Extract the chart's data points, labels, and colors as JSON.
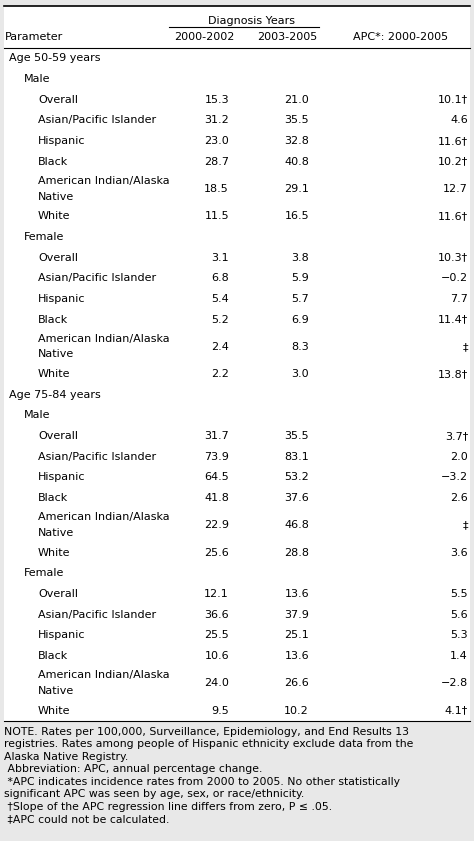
{
  "col_headers": [
    "Parameter",
    "2000-2002",
    "2003-2005",
    "APC*: 2000-2005"
  ],
  "diag_years_label": "Diagnosis Years",
  "rows": [
    {
      "label": "Age 50-59 years",
      "level": 0,
      "type": "section",
      "v1": "",
      "v2": "",
      "v3": "",
      "tall": false
    },
    {
      "label": "Male",
      "level": 1,
      "type": "subsection",
      "v1": "",
      "v2": "",
      "v3": "",
      "tall": false
    },
    {
      "label": "Overall",
      "level": 2,
      "type": "data",
      "v1": "15.3",
      "v2": "21.0",
      "v3": "10.1†",
      "tall": false
    },
    {
      "label": "Asian/Pacific Islander",
      "level": 2,
      "type": "data",
      "v1": "31.2",
      "v2": "35.5",
      "v3": "4.6",
      "tall": false
    },
    {
      "label": "Hispanic",
      "level": 2,
      "type": "data",
      "v1": "23.0",
      "v2": "32.8",
      "v3": "11.6†",
      "tall": false
    },
    {
      "label": "Black",
      "level": 2,
      "type": "data",
      "v1": "28.7",
      "v2": "40.8",
      "v3": "10.2†",
      "tall": false
    },
    {
      "label": "American Indian/Alaska\nNative",
      "level": 2,
      "type": "data",
      "v1": "18.5",
      "v2": "29.1",
      "v3": "12.7",
      "tall": true
    },
    {
      "label": "White",
      "level": 2,
      "type": "data",
      "v1": "11.5",
      "v2": "16.5",
      "v3": "11.6†",
      "tall": false
    },
    {
      "label": "Female",
      "level": 1,
      "type": "subsection",
      "v1": "",
      "v2": "",
      "v3": "",
      "tall": false
    },
    {
      "label": "Overall",
      "level": 2,
      "type": "data",
      "v1": "3.1",
      "v2": "3.8",
      "v3": "10.3†",
      "tall": false
    },
    {
      "label": "Asian/Pacific Islander",
      "level": 2,
      "type": "data",
      "v1": "6.8",
      "v2": "5.9",
      "v3": "−0.2",
      "tall": false
    },
    {
      "label": "Hispanic",
      "level": 2,
      "type": "data",
      "v1": "5.4",
      "v2": "5.7",
      "v3": "7.7",
      "tall": false
    },
    {
      "label": "Black",
      "level": 2,
      "type": "data",
      "v1": "5.2",
      "v2": "6.9",
      "v3": "11.4†",
      "tall": false
    },
    {
      "label": "American Indian/Alaska\nNative",
      "level": 2,
      "type": "data",
      "v1": "2.4",
      "v2": "8.3",
      "v3": "‡",
      "tall": true
    },
    {
      "label": "White",
      "level": 2,
      "type": "data",
      "v1": "2.2",
      "v2": "3.0",
      "v3": "13.8†",
      "tall": false
    },
    {
      "label": "Age 75-84 years",
      "level": 0,
      "type": "section",
      "v1": "",
      "v2": "",
      "v3": "",
      "tall": false
    },
    {
      "label": "Male",
      "level": 1,
      "type": "subsection",
      "v1": "",
      "v2": "",
      "v3": "",
      "tall": false
    },
    {
      "label": "Overall",
      "level": 2,
      "type": "data",
      "v1": "31.7",
      "v2": "35.5",
      "v3": "3.7†",
      "tall": false
    },
    {
      "label": "Asian/Pacific Islander",
      "level": 2,
      "type": "data",
      "v1": "73.9",
      "v2": "83.1",
      "v3": "2.0",
      "tall": false
    },
    {
      "label": "Hispanic",
      "level": 2,
      "type": "data",
      "v1": "64.5",
      "v2": "53.2",
      "v3": "−3.2",
      "tall": false
    },
    {
      "label": "Black",
      "level": 2,
      "type": "data",
      "v1": "41.8",
      "v2": "37.6",
      "v3": "2.6",
      "tall": false
    },
    {
      "label": "American Indian/Alaska\nNative",
      "level": 2,
      "type": "data",
      "v1": "22.9",
      "v2": "46.8",
      "v3": "‡",
      "tall": true
    },
    {
      "label": "White",
      "level": 2,
      "type": "data",
      "v1": "25.6",
      "v2": "28.8",
      "v3": "3.6",
      "tall": false
    },
    {
      "label": "Female",
      "level": 1,
      "type": "subsection",
      "v1": "",
      "v2": "",
      "v3": "",
      "tall": false
    },
    {
      "label": "Overall",
      "level": 2,
      "type": "data",
      "v1": "12.1",
      "v2": "13.6",
      "v3": "5.5",
      "tall": false
    },
    {
      "label": "Asian/Pacific Islander",
      "level": 2,
      "type": "data",
      "v1": "36.6",
      "v2": "37.9",
      "v3": "5.6",
      "tall": false
    },
    {
      "label": "Hispanic",
      "level": 2,
      "type": "data",
      "v1": "25.5",
      "v2": "25.1",
      "v3": "5.3",
      "tall": false
    },
    {
      "label": "Black",
      "level": 2,
      "type": "data",
      "v1": "10.6",
      "v2": "13.6",
      "v3": "1.4",
      "tall": false
    },
    {
      "label": "American Indian/Alaska\nNative",
      "level": 2,
      "type": "data",
      "v1": "24.0",
      "v2": "26.6",
      "v3": "−2.8",
      "tall": true
    },
    {
      "label": "White",
      "level": 2,
      "type": "data",
      "v1": "9.5",
      "v2": "10.2",
      "v3": "4.1†",
      "tall": false
    }
  ],
  "footnote_lines": [
    "NOTE. Rates per 100,000, Surveillance, Epidemiology, and End Results 13",
    "registries. Rates among people of Hispanic ethnicity exclude data from the",
    "Alaska Native Registry.",
    " Abbreviation: APC, annual percentage change.",
    " *APC indicates incidence rates from 2000 to 2005. No other statistically",
    "significant APC was seen by age, sex, or race/ethnicity.",
    " †Slope of the APC regression line differs from zero, P ≤ .05.",
    " ‡APC could not be calculated."
  ],
  "bg_color": "#e8e8e8",
  "font_size": 8.0,
  "footnote_font_size": 7.8
}
